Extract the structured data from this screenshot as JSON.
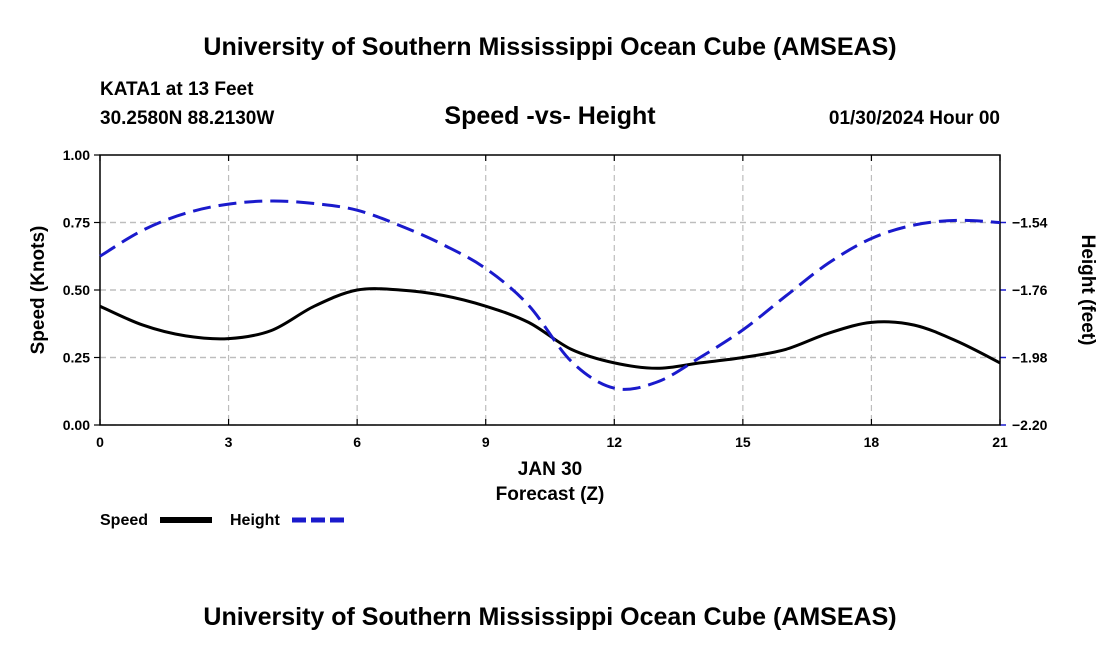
{
  "header": {
    "title": "University of Southern Mississippi Ocean Cube (AMSEAS)",
    "station": "KATA1 at 13 Feet",
    "coords": "30.2580N  88.2130W",
    "date": "01/30/2024 Hour 00"
  },
  "footer": {
    "title": "University of Southern Mississippi Ocean Cube (AMSEAS)"
  },
  "chart_data": {
    "type": "line",
    "title": "Speed -vs- Height",
    "xlabel_date": "JAN 30",
    "xlabel": "Forecast (Z)",
    "ylabel_left": "Speed (Knots)",
    "ylabel_right": "Height (feet)",
    "xlim": [
      0,
      21
    ],
    "ylim_left": [
      0,
      1
    ],
    "ylim_right": [
      -2.2,
      -1.32
    ],
    "x_ticks": [
      0,
      3,
      6,
      9,
      12,
      15,
      18,
      21
    ],
    "x_tick_labels": [
      "0",
      "3",
      "6",
      "9",
      "12",
      "15",
      "18",
      "21"
    ],
    "y_left_ticks": [
      0,
      0.25,
      0.5,
      0.75,
      1.0
    ],
    "y_left_tick_labels": [
      "0.00",
      "0.25",
      "0.50",
      "0.75",
      "1.00"
    ],
    "y_right_ticks": [
      -2.2,
      -1.98,
      -1.76,
      -1.54
    ],
    "y_right_tick_labels": [
      "−2.20",
      "−1.98",
      "−1.76",
      "−1.54"
    ],
    "grid": true,
    "legend": "bottom-left",
    "series": [
      {
        "name": "Speed",
        "axis": "left",
        "color": "#000000",
        "dash": "solid",
        "x": [
          0,
          1,
          2,
          3,
          4,
          5,
          6,
          7,
          8,
          9,
          10,
          11,
          12,
          13,
          14,
          15,
          16,
          17,
          18,
          19,
          20,
          21
        ],
        "values": [
          0.44,
          0.37,
          0.33,
          0.32,
          0.35,
          0.44,
          0.5,
          0.5,
          0.48,
          0.44,
          0.38,
          0.28,
          0.23,
          0.21,
          0.23,
          0.25,
          0.28,
          0.34,
          0.38,
          0.37,
          0.31,
          0.23
        ]
      },
      {
        "name": "Height",
        "axis": "right",
        "color": "#1a1acc",
        "dash": "dashed",
        "x": [
          0,
          1,
          2,
          3,
          4,
          5,
          6,
          7,
          8,
          9,
          10,
          11,
          12,
          13,
          14,
          15,
          16,
          17,
          18,
          19,
          20,
          21
        ],
        "values": [
          -1.65,
          -1.565,
          -1.51,
          -1.48,
          -1.47,
          -1.478,
          -1.5,
          -1.55,
          -1.612,
          -1.69,
          -1.81,
          -1.993,
          -2.08,
          -2.06,
          -1.98,
          -1.89,
          -1.78,
          -1.672,
          -1.592,
          -1.548,
          -1.533,
          -1.54
        ]
      }
    ]
  }
}
